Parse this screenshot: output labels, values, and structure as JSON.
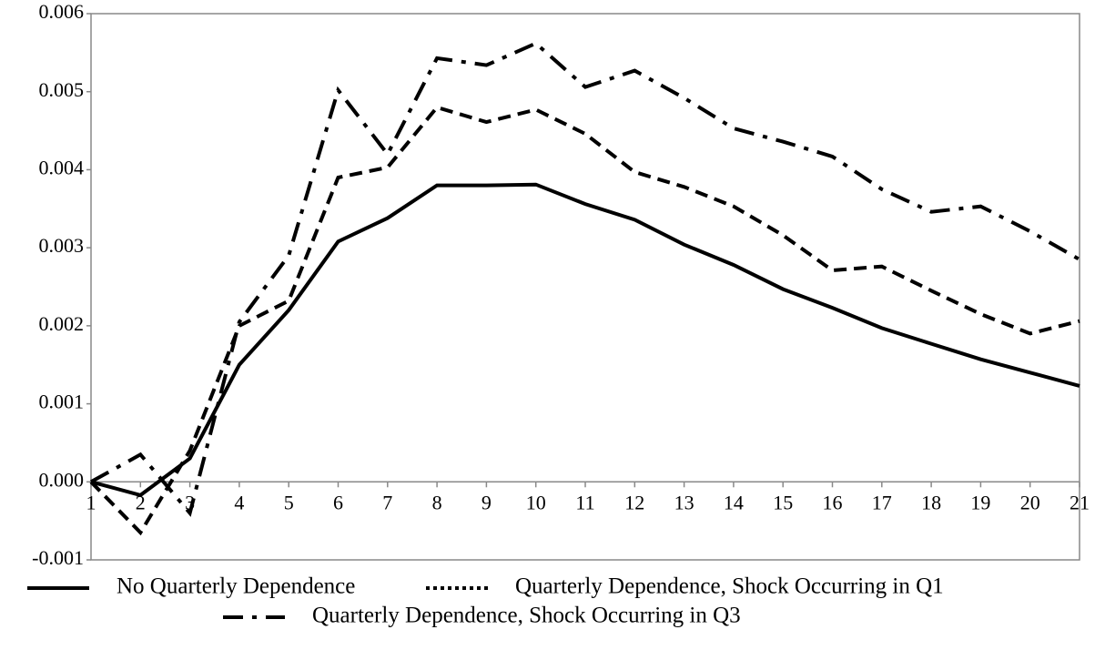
{
  "chart_data": {
    "type": "line",
    "categories": [
      "1",
      "2",
      "3",
      "4",
      "5",
      "6",
      "7",
      "8",
      "9",
      "10",
      "11",
      "12",
      "13",
      "14",
      "15",
      "16",
      "17",
      "18",
      "19",
      "20",
      "21"
    ],
    "series": [
      {
        "name": "No Quarterly Dependence",
        "color": "#000000",
        "dash": "solid",
        "values": [
          0,
          -0.00017,
          0.0003,
          0.0015,
          0.0022,
          0.00308,
          0.00338,
          0.0038,
          0.0038,
          0.00381,
          0.00356,
          0.00336,
          0.00304,
          0.00278,
          0.00247,
          0.00223,
          0.00197,
          0.00177,
          0.00157,
          0.0014,
          0.00123
        ]
      },
      {
        "name": "Quarterly Dependence, Shock Occurring in Q1",
        "color": "#000000",
        "dash": "dashed",
        "values": [
          0,
          -0.00065,
          0.0004,
          0.002,
          0.00232,
          0.0039,
          0.00403,
          0.0048,
          0.00461,
          0.00477,
          0.00446,
          0.00397,
          0.00378,
          0.00353,
          0.00316,
          0.00271,
          0.00276,
          0.00245,
          0.00215,
          0.0019,
          0.00206
        ]
      },
      {
        "name": "Quarterly Dependence, Shock Occurring in Q3",
        "color": "#000000",
        "dash": "dashdot",
        "values": [
          0,
          0.00035,
          -0.0004,
          0.00205,
          0.0029,
          0.00502,
          0.0042,
          0.00543,
          0.00534,
          0.00562,
          0.00506,
          0.00527,
          0.00492,
          0.00453,
          0.00436,
          0.00417,
          0.00375,
          0.00346,
          0.00353,
          0.00321,
          0.00285
        ]
      }
    ],
    "ylim": [
      -0.001,
      0.006
    ],
    "yticks": [
      {
        "value": -0.001,
        "label": "-0.001"
      },
      {
        "value": 0,
        "label": "0.000"
      },
      {
        "value": 0.001,
        "label": "0.001"
      },
      {
        "value": 0.002,
        "label": "0.002"
      },
      {
        "value": 0.003,
        "label": "0.003"
      },
      {
        "value": 0.004,
        "label": "0.004"
      },
      {
        "value": 0.005,
        "label": "0.005"
      },
      {
        "value": 0.006,
        "label": "0.006"
      }
    ],
    "legend": "bottom"
  }
}
